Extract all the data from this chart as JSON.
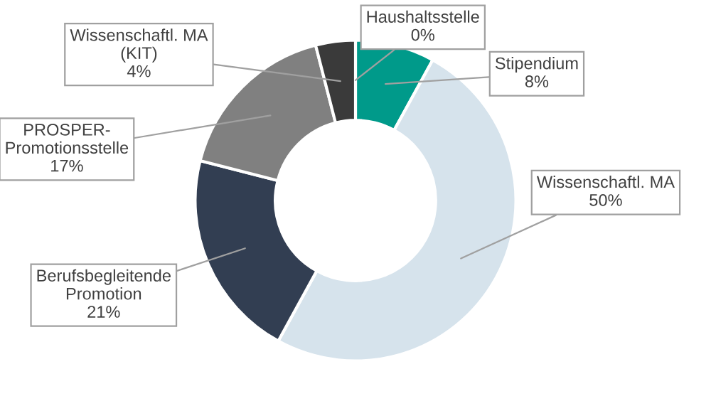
{
  "chart_data": {
    "type": "donut",
    "categories": [
      "Haushaltsstelle",
      "Stipendium",
      "Wissenschaftl. MA",
      "Berufsbegleitende\nPromotion",
      "PROSPER-\nPromotionsstelle",
      "Wissenschaftl. MA\n(KIT)"
    ],
    "values": [
      0,
      8,
      50,
      21,
      17,
      4
    ],
    "colors": [
      "#1f6f8b",
      "#009a8a",
      "#d6e3ec",
      "#323e52",
      "#808080",
      "#3a3a3a"
    ],
    "value_labels": [
      "0%",
      "8%",
      "50%",
      "21%",
      "17%",
      "4%"
    ],
    "legend": false
  }
}
